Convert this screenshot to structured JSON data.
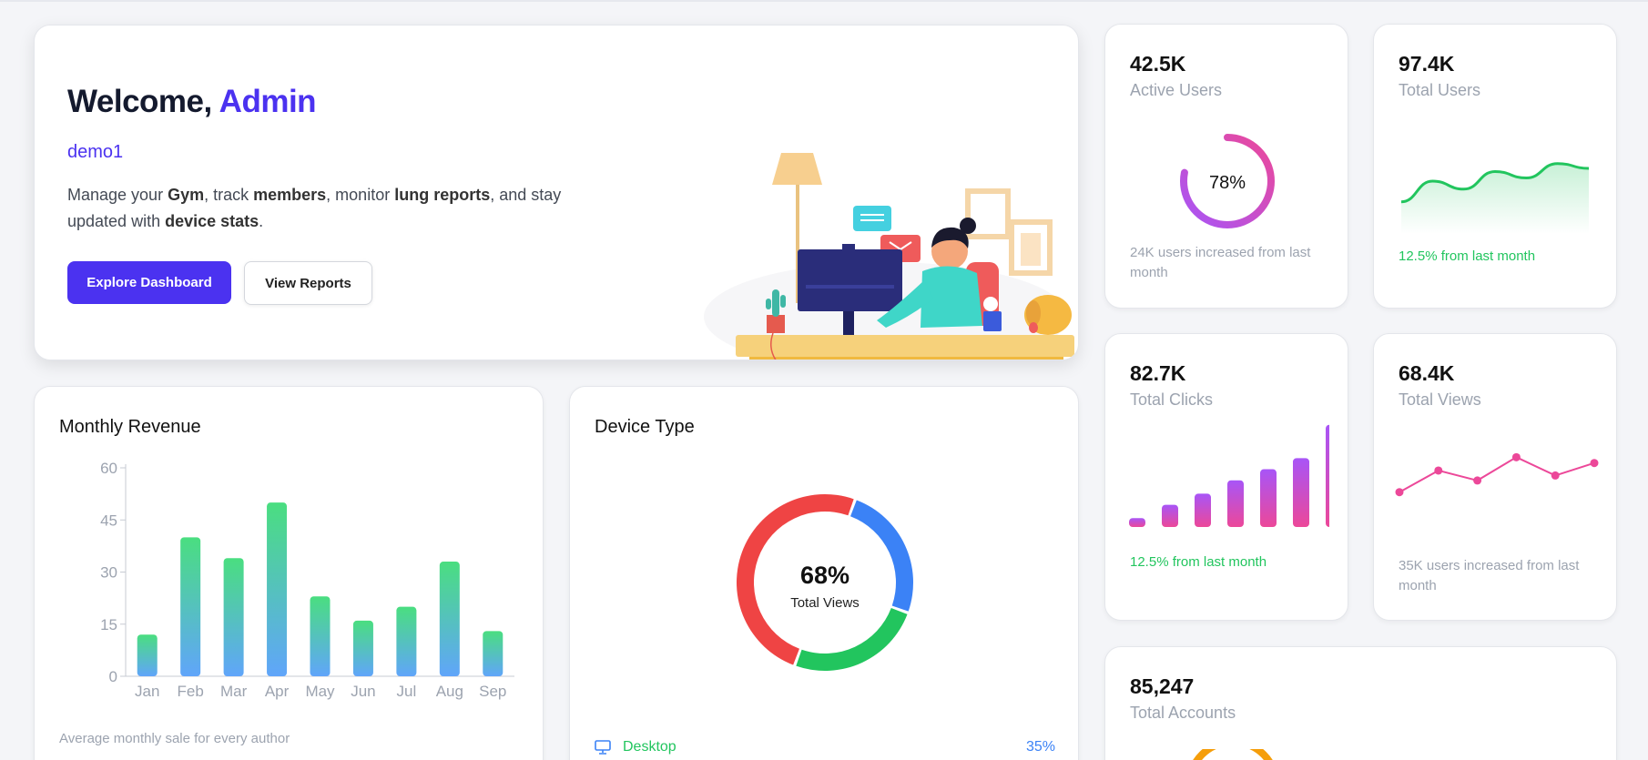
{
  "welcome": {
    "greeting": "Welcome, ",
    "name": "Admin",
    "subtitle": "demo1",
    "desc": [
      {
        "t": "Manage your ",
        "b": false
      },
      {
        "t": "Gym",
        "b": true
      },
      {
        "t": ", track ",
        "b": false
      },
      {
        "t": "members",
        "b": true
      },
      {
        "t": ", monitor ",
        "b": false
      },
      {
        "t": "lung reports",
        "b": true
      },
      {
        "t": ", and stay updated with ",
        "b": false
      },
      {
        "t": "device stats",
        "b": true
      },
      {
        "t": ".",
        "b": false
      }
    ],
    "primary_button": "Explore Dashboard",
    "secondary_button": "View Reports"
  },
  "stats": {
    "active_users": {
      "value": "42.5K",
      "label": "Active Users",
      "ring_percent": 78,
      "ring_text": "78%",
      "note": "24K users increased from last month"
    },
    "total_users": {
      "value": "97.4K",
      "label": "Total Users",
      "note": "12.5% from last month",
      "trend": [
        22,
        48,
        38,
        60,
        52,
        70,
        64
      ]
    },
    "total_clicks": {
      "value": "82.7K",
      "label": "Total Clicks",
      "note": "12.5% from last month",
      "bars": [
        8,
        20,
        30,
        42,
        52,
        62,
        92
      ]
    },
    "total_views": {
      "value": "68.4K",
      "label": "Total Views",
      "note": "35K users increased from last month",
      "points": [
        20,
        46,
        34,
        62,
        40,
        55
      ]
    },
    "total_accounts": {
      "value": "85,247",
      "label": "Total Accounts"
    }
  },
  "revenue": {
    "title": "Monthly Revenue",
    "footnote": "Average monthly sale for every author",
    "chart_data": {
      "type": "bar",
      "categories": [
        "Jan",
        "Feb",
        "Mar",
        "Apr",
        "May",
        "Jun",
        "Jul",
        "Aug",
        "Sep"
      ],
      "values": [
        12,
        40,
        34,
        50,
        23,
        16,
        20,
        33,
        13
      ],
      "ylim": [
        0,
        60
      ],
      "yticks": [
        0,
        15,
        30,
        45,
        60
      ]
    }
  },
  "device": {
    "title": "Device Type",
    "center_percent": "68%",
    "center_label": "Total Views",
    "segments": [
      {
        "color": "#3b82f6",
        "value": 25
      },
      {
        "color": "#22c55e",
        "value": 25
      },
      {
        "color": "#ef4444",
        "value": 50
      }
    ],
    "legend": [
      {
        "name": "Desktop",
        "value": "35%",
        "icon": "monitor-icon"
      }
    ]
  },
  "colors": {
    "primary": "#4b32f0",
    "green": "#22c55e",
    "blue": "#3b82f6",
    "red": "#ef4444",
    "pink": "#ec4899",
    "purple": "#a855f7"
  }
}
